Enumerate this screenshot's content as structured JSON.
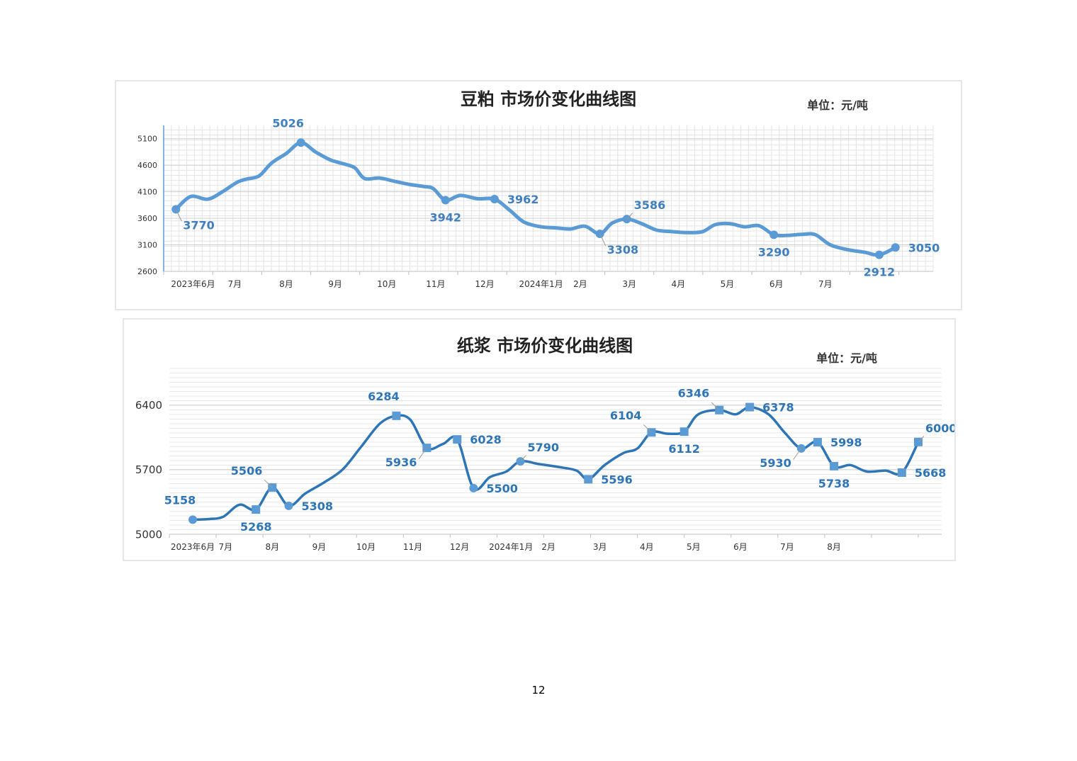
{
  "page": {
    "page_number": "12"
  },
  "chart_data": [
    {
      "type": "line",
      "title": "豆粕 市场价变化曲线图",
      "unit": "单位：元/吨",
      "xlabel": "",
      "ylabel": "",
      "ylim": [
        2600,
        5350
      ],
      "yticks": [
        "2600",
        "3100",
        "3600",
        "4100",
        "4600",
        "5100"
      ],
      "grid": true,
      "line_color": "#5B9BD5",
      "label_color": "#3F7FBF",
      "x_ticks": [
        {
          "label": "2023年6月",
          "t": 0.6
        },
        {
          "label": "7月",
          "t": 1.45
        },
        {
          "label": "8月",
          "t": 2.5
        },
        {
          "label": "9月",
          "t": 3.5
        },
        {
          "label": "10月",
          "t": 4.55
        },
        {
          "label": "11月",
          "t": 5.55
        },
        {
          "label": "12月",
          "t": 6.55
        },
        {
          "label": "2024年1月",
          "t": 7.7
        },
        {
          "label": "2月",
          "t": 8.5
        },
        {
          "label": "3月",
          "t": 9.5
        },
        {
          "label": "4月",
          "t": 10.5
        },
        {
          "label": "5月",
          "t": 11.5
        },
        {
          "label": "6月",
          "t": 12.5
        },
        {
          "label": "7月",
          "t": 13.5
        }
      ],
      "series": [
        {
          "values": [
            [
              0.25,
              3770
            ],
            [
              0.55,
              4010
            ],
            [
              0.9,
              3960
            ],
            [
              1.2,
              4100
            ],
            [
              1.5,
              4280
            ],
            [
              1.7,
              4340
            ],
            [
              1.95,
              4400
            ],
            [
              2.2,
              4640
            ],
            [
              2.5,
              4820
            ],
            [
              2.8,
              5026
            ],
            [
              3.1,
              4850
            ],
            [
              3.4,
              4700
            ],
            [
              3.7,
              4620
            ],
            [
              3.9,
              4550
            ],
            [
              4.1,
              4350
            ],
            [
              4.4,
              4360
            ],
            [
              4.7,
              4300
            ],
            [
              5.0,
              4240
            ],
            [
              5.3,
              4200
            ],
            [
              5.5,
              4160
            ],
            [
              5.75,
              3942
            ],
            [
              6.05,
              4030
            ],
            [
              6.4,
              3970
            ],
            [
              6.75,
              3962
            ],
            [
              7.05,
              3760
            ],
            [
              7.35,
              3530
            ],
            [
              7.7,
              3440
            ],
            [
              8.0,
              3420
            ],
            [
              8.3,
              3400
            ],
            [
              8.6,
              3450
            ],
            [
              8.9,
              3308
            ],
            [
              9.15,
              3510
            ],
            [
              9.45,
              3586
            ],
            [
              9.75,
              3500
            ],
            [
              10.05,
              3380
            ],
            [
              10.35,
              3350
            ],
            [
              10.7,
              3330
            ],
            [
              11.0,
              3350
            ],
            [
              11.25,
              3480
            ],
            [
              11.55,
              3500
            ],
            [
              11.85,
              3440
            ],
            [
              12.15,
              3460
            ],
            [
              12.45,
              3290
            ],
            [
              12.75,
              3280
            ],
            [
              13.05,
              3300
            ],
            [
              13.3,
              3290
            ],
            [
              13.6,
              3100
            ],
            [
              13.95,
              3010
            ],
            [
              14.3,
              2960
            ],
            [
              14.6,
              2912
            ],
            [
              14.93,
              3050
            ]
          ]
        }
      ],
      "markers": [
        {
          "t": 0.25,
          "v": 3770,
          "label": "3770",
          "pos": "below-right"
        },
        {
          "t": 2.8,
          "v": 5026,
          "label": "5026",
          "pos": "above"
        },
        {
          "t": 5.75,
          "v": 3942,
          "label": "3942",
          "pos": "below"
        },
        {
          "t": 6.75,
          "v": 3962,
          "label": "3962",
          "pos": "right"
        },
        {
          "t": 8.9,
          "v": 3308,
          "label": "3308",
          "pos": "below-right"
        },
        {
          "t": 9.45,
          "v": 3586,
          "label": "3586",
          "pos": "above-right"
        },
        {
          "t": 12.45,
          "v": 3290,
          "label": "3290",
          "pos": "below"
        },
        {
          "t": 14.6,
          "v": 2912,
          "label": "2912",
          "pos": "below"
        },
        {
          "t": 14.93,
          "v": 3050,
          "label": "3050",
          "pos": "right"
        }
      ]
    },
    {
      "type": "line",
      "title": "纸浆 市场价变化曲线图",
      "unit": "单位：元/吨",
      "xlabel": "",
      "ylabel": "",
      "ylim": [
        5000,
        6820
      ],
      "yticks": [
        "5000",
        "5700",
        "6400"
      ],
      "grid": true,
      "line_color": "#2E75B6",
      "label_color": "#2E75B6",
      "x_ticks": [
        {
          "label": "2023年6月",
          "t": 0.5
        },
        {
          "label": "7月",
          "t": 1.2
        },
        {
          "label": "8月",
          "t": 2.2
        },
        {
          "label": "9月",
          "t": 3.2
        },
        {
          "label": "10月",
          "t": 4.2
        },
        {
          "label": "11月",
          "t": 5.2
        },
        {
          "label": "12月",
          "t": 6.2
        },
        {
          "label": "2024年1月",
          "t": 7.3
        },
        {
          "label": "2月",
          "t": 8.1
        },
        {
          "label": "3月",
          "t": 9.2
        },
        {
          "label": "4月",
          "t": 10.2
        },
        {
          "label": "5月",
          "t": 11.2
        },
        {
          "label": "6月",
          "t": 12.2
        },
        {
          "label": "7月",
          "t": 13.2
        },
        {
          "label": "8月",
          "t": 14.2
        }
      ],
      "series": [
        {
          "values": [
            [
              0.5,
              5158
            ],
            [
              0.85,
              5165
            ],
            [
              1.15,
              5190
            ],
            [
              1.5,
              5320
            ],
            [
              1.85,
              5268
            ],
            [
              2.2,
              5506
            ],
            [
              2.55,
              5308
            ],
            [
              2.9,
              5440
            ],
            [
              3.3,
              5560
            ],
            [
              3.7,
              5700
            ],
            [
              4.1,
              5950
            ],
            [
              4.5,
              6200
            ],
            [
              4.85,
              6284
            ],
            [
              5.15,
              6240
            ],
            [
              5.5,
              5936
            ],
            [
              5.85,
              5980
            ],
            [
              6.15,
              6028
            ],
            [
              6.5,
              5500
            ],
            [
              6.85,
              5620
            ],
            [
              7.2,
              5680
            ],
            [
              7.5,
              5790
            ],
            [
              7.9,
              5760
            ],
            [
              8.3,
              5730
            ],
            [
              8.7,
              5690
            ],
            [
              8.95,
              5596
            ],
            [
              9.3,
              5750
            ],
            [
              9.7,
              5880
            ],
            [
              10.0,
              5930
            ],
            [
              10.3,
              6104
            ],
            [
              10.65,
              6090
            ],
            [
              11.0,
              6112
            ],
            [
              11.3,
              6300
            ],
            [
              11.75,
              6346
            ],
            [
              12.1,
              6300
            ],
            [
              12.4,
              6378
            ],
            [
              12.8,
              6300
            ],
            [
              13.15,
              6100
            ],
            [
              13.5,
              5930
            ],
            [
              13.85,
              5998
            ],
            [
              14.2,
              5738
            ],
            [
              14.55,
              5750
            ],
            [
              14.9,
              5680
            ],
            [
              15.3,
              5690
            ],
            [
              15.65,
              5668
            ],
            [
              16.0,
              6000
            ]
          ]
        }
      ],
      "markers": [
        {
          "t": 0.5,
          "v": 5158,
          "label": "5158",
          "shape": "circle",
          "pos": "above"
        },
        {
          "t": 1.85,
          "v": 5268,
          "label": "5268",
          "shape": "square",
          "pos": "below"
        },
        {
          "t": 2.2,
          "v": 5506,
          "label": "5506",
          "shape": "square",
          "pos": "above-left"
        },
        {
          "t": 2.55,
          "v": 5308,
          "label": "5308",
          "shape": "circle",
          "pos": "right"
        },
        {
          "t": 4.85,
          "v": 6284,
          "label": "6284",
          "shape": "square",
          "pos": "above"
        },
        {
          "t": 5.5,
          "v": 5936,
          "label": "5936",
          "shape": "square",
          "pos": "below-left"
        },
        {
          "t": 6.15,
          "v": 6028,
          "label": "6028",
          "shape": "square",
          "pos": "right"
        },
        {
          "t": 6.5,
          "v": 5500,
          "label": "5500",
          "shape": "circle",
          "pos": "right"
        },
        {
          "t": 7.5,
          "v": 5790,
          "label": "5790",
          "shape": "circle",
          "pos": "above-right"
        },
        {
          "t": 8.95,
          "v": 5596,
          "label": "5596",
          "shape": "square",
          "pos": "right"
        },
        {
          "t": 10.3,
          "v": 6104,
          "label": "6104",
          "shape": "square",
          "pos": "above-left"
        },
        {
          "t": 11.0,
          "v": 6112,
          "label": "6112",
          "shape": "square",
          "pos": "below"
        },
        {
          "t": 11.75,
          "v": 6346,
          "label": "6346",
          "shape": "square",
          "pos": "above-left"
        },
        {
          "t": 12.4,
          "v": 6378,
          "label": "6378",
          "shape": "square",
          "pos": "right"
        },
        {
          "t": 13.5,
          "v": 5930,
          "label": "5930",
          "shape": "circle",
          "pos": "below-left"
        },
        {
          "t": 13.85,
          "v": 5998,
          "label": "5998",
          "shape": "square",
          "pos": "right"
        },
        {
          "t": 14.2,
          "v": 5738,
          "label": "5738",
          "shape": "square",
          "pos": "below"
        },
        {
          "t": 15.65,
          "v": 5668,
          "label": "5668",
          "shape": "square",
          "pos": "right"
        },
        {
          "t": 16.0,
          "v": 6000,
          "label": "6000",
          "shape": "square",
          "pos": "above-right"
        }
      ]
    }
  ]
}
